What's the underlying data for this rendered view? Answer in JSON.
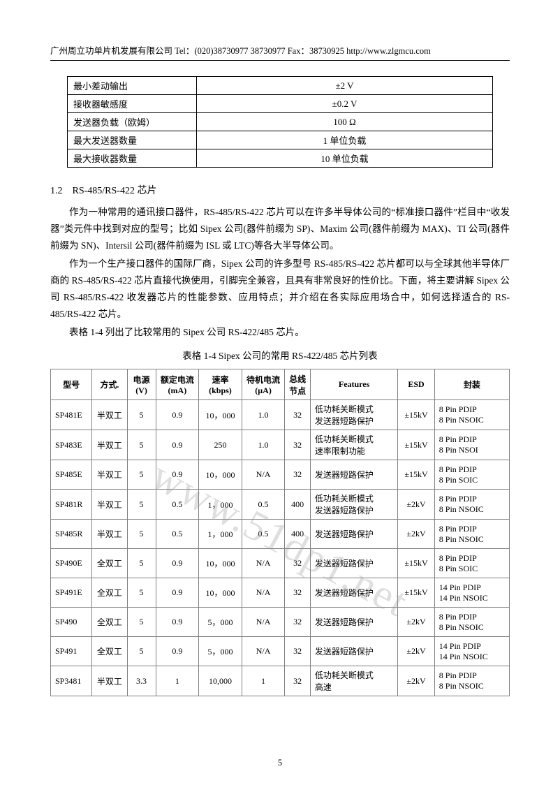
{
  "header": {
    "text": "广州周立功单片机发展有限公司   Tel：(020)38730977    38730977    Fax：38730925    http://www.zlgmcu.com"
  },
  "watermark": "www.51dp1.net",
  "table1": {
    "rows": [
      {
        "label": "最小差动输出",
        "value": "±2 V"
      },
      {
        "label": "接收器敏感度",
        "value": "±0.2 V"
      },
      {
        "label": "发送器负载（欧姆）",
        "value": "100 Ω"
      },
      {
        "label": "最大发送器数量",
        "value": "1 单位负载"
      },
      {
        "label": "最大接收器数量",
        "value": "10 单位负载"
      }
    ]
  },
  "section": {
    "number": "1.2",
    "title": "RS-485/RS-422 芯片"
  },
  "paragraphs": [
    "作为一种常用的通讯接口器件，RS-485/RS-422 芯片可以在许多半导体公司的“标准接口器件”栏目中“收发器”类元件中找到对应的型号；比如 Sipex 公司(器件前缀为 SP)、Maxim 公司(器件前缀为 MAX)、TI 公司(器件前缀为 SN)、Intersil 公司(器件前缀为 ISL 或 LTC)等各大半导体公司。",
    "作为一个生产接口器件的国际厂商，Sipex 公司的许多型号 RS-485/RS-422 芯片都可以与全球其他半导体厂商的 RS-485/RS-422 芯片直接代换使用，引脚完全兼容，且具有非常良好的性价比。下面，将主要讲解 Sipex 公司 RS-485/RS-422 收发器芯片的性能参数、应用特点；并介绍在各实际应用场合中，如何选择适合的 RS-485/RS-422 芯片。",
    "表格 1-4 列出了比较常用的 Sipex 公司 RS-422/485 芯片。"
  ],
  "caption": "表格  1-4      Sipex 公司的常用 RS-422/485 芯片列表",
  "table2": {
    "columns": [
      "型号",
      "方式.",
      "电源 (V)",
      "额定电流 (mA)",
      "速率 (kbps)",
      "待机电流 (µA)",
      "总线节点",
      "Features",
      "ESD",
      "封装"
    ],
    "rows": [
      {
        "model": "SP481E",
        "mode": "半双工",
        "v": "5",
        "i": "0.9",
        "rate": "10，000",
        "standby": "1.0",
        "nodes": "32",
        "feat": "低功耗关断模式\n发送器短路保护",
        "esd": "±15kV",
        "pkg": "8 Pin PDIP\n8 Pin NSOIC"
      },
      {
        "model": "SP483E",
        "mode": "半双工",
        "v": "5",
        "i": "0.9",
        "rate": "250",
        "standby": "1.0",
        "nodes": "32",
        "feat": "低功耗关断模式\n速率限制功能",
        "esd": "±15kV",
        "pkg": "8 Pin PDIP\n8 Pin NSOI"
      },
      {
        "model": "SP485E",
        "mode": "半双工",
        "v": "5",
        "i": "0.9",
        "rate": "10，000",
        "standby": "N/A",
        "nodes": "32",
        "feat": "发送器短路保护",
        "esd": "±15kV",
        "pkg": "8 Pin PDIP\n8 Pin SOIC"
      },
      {
        "model": "SP481R",
        "mode": "半双工",
        "v": "5",
        "i": "0.5",
        "rate": "1，000",
        "standby": "0.5",
        "nodes": "400",
        "feat": "低功耗关断模式\n发送器短路保护",
        "esd": "±2kV",
        "pkg": "8 Pin PDIP\n8 Pin NSOIC"
      },
      {
        "model": "SP485R",
        "mode": "半双工",
        "v": "5",
        "i": "0.5",
        "rate": "1，000",
        "standby": "0.5",
        "nodes": "400",
        "feat": "发送器短路保护",
        "esd": "±2kV",
        "pkg": "8 Pin PDIP\n8 Pin NSOIC"
      },
      {
        "model": "SP490E",
        "mode": "全双工",
        "v": "5",
        "i": "0.9",
        "rate": "10，000",
        "standby": "N/A",
        "nodes": "32",
        "feat": "发送器短路保护",
        "esd": "±15kV",
        "pkg": "8 Pin PDIP\n8 Pin SOIC"
      },
      {
        "model": "SP491E",
        "mode": "全双工",
        "v": "5",
        "i": "0.9",
        "rate": "10，000",
        "standby": "N/A",
        "nodes": "32",
        "feat": "发送器短路保护",
        "esd": "±15kV",
        "pkg": "14 Pin PDIP\n14 Pin NSOIC"
      },
      {
        "model": "SP490",
        "mode": "全双工",
        "v": "5",
        "i": "0.9",
        "rate": "5，000",
        "standby": "N/A",
        "nodes": "32",
        "feat": "发送器短路保护",
        "esd": "±2kV",
        "pkg": "8 Pin PDIP\n8 Pin NSOIC"
      },
      {
        "model": "SP491",
        "mode": "全双工",
        "v": "5",
        "i": "0.9",
        "rate": "5，000",
        "standby": "N/A",
        "nodes": "32",
        "feat": "发送器短路保护",
        "esd": "±2kV",
        "pkg": "14 Pin PDIP\n14 Pin NSOIC"
      },
      {
        "model": "SP3481",
        "mode": "半双工",
        "v": "3.3",
        "i": "1",
        "rate": "10,000",
        "standby": "1",
        "nodes": "32",
        "feat": "低功耗关断模式\n高速",
        "esd": "±2kV",
        "pkg": "8 Pin PDIP\n8 Pin NSOIC"
      }
    ]
  },
  "pageNumber": "5",
  "style": {
    "border_color": "#808080",
    "text_color": "#000000",
    "bg": "#ffffff",
    "watermark_color": "rgba(140,140,140,0.28)"
  }
}
